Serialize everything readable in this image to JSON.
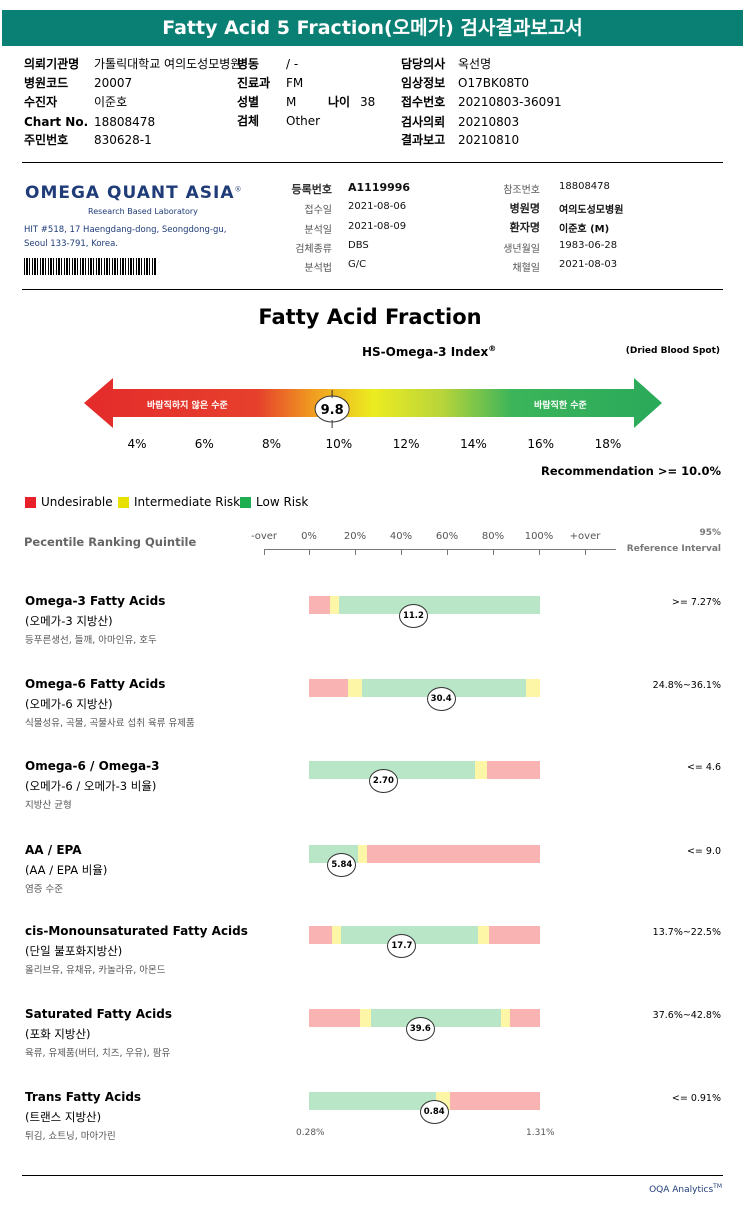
{
  "header": {
    "title": "Fatty Acid 5 Fraction(오메가) 검사결과보고서"
  },
  "patient": {
    "institution_label": "의뢰기관명",
    "institution_value": "가톨릭대학교 여의도성모병원",
    "ward_label": "병동",
    "ward_value": "/ -",
    "doctor_label": "담당의사",
    "doctor_value": "옥선명",
    "hospital_code_label": "병원코드",
    "hospital_code_value": "20007",
    "dept_label": "진료과",
    "dept_value": "FM",
    "clinical_label": "임상정보",
    "clinical_value": "O17BK08T0",
    "name_label": "수진자",
    "name_value": "이준호",
    "sex_label": "성별",
    "sex_value": "M",
    "age_label": "나이",
    "age_value": "38",
    "receipt_label": "접수번호",
    "receipt_value": "20210803-36091",
    "chart_label": "Chart No.",
    "chart_value": "18808478",
    "specimen_label": "검체",
    "specimen_value": "Other",
    "request_label": "검사의뢰",
    "request_value": "20210803",
    "rrn_label": "주민번호",
    "rrn_value": "830628-1",
    "report_label": "결과보고",
    "report_value": "20210810"
  },
  "lab": {
    "logo": "OMEGA QUANT ASIA",
    "logo_mark": "®",
    "tagline": "Research Based Laboratory",
    "address1": "HIT #518, 17 Haengdang-dong, Seongdong-gu,",
    "address2": "Seoul 133-791, Korea.",
    "reg_no_label": "등록번호",
    "reg_no_value": "A1119996",
    "received_label": "접수일",
    "received_value": "2021-08-06",
    "analyzed_label": "분석일",
    "analyzed_value": "2021-08-09",
    "sample_type_label": "검체종류",
    "sample_type_value": "DBS",
    "method_label": "분석법",
    "method_value": "G/C",
    "ref_no_label": "참조번호",
    "ref_no_value": "18808478",
    "hospital_label": "병원명",
    "hospital_value": "여의도성모병원",
    "patient_label": "환자명",
    "patient_value": "이준호 (M)",
    "dob_label": "생년월일",
    "dob_value": "1983-06-28",
    "collected_label": "채혈일",
    "collected_value": "2021-08-03"
  },
  "fraction": {
    "title": "Fatty Acid Fraction",
    "index_label": "HS-Omega-3 Index",
    "index_mark": "®",
    "dbs": "(Dried Blood Spot)",
    "left_text": "바람직하지 않은 수준",
    "right_text": "바람직한 수준",
    "value": 9.8,
    "value_text": "9.8",
    "ticks": [
      "4%",
      "6%",
      "8%",
      "10%",
      "12%",
      "14%",
      "16%",
      "18%"
    ],
    "tick_values": [
      4,
      6,
      8,
      10,
      12,
      14,
      16,
      18
    ],
    "recommendation": "Recommendation  >= 10.0%"
  },
  "legend": {
    "undesirable": "Undesirable",
    "intermediate": "Intermediate Risk",
    "low": "Low Risk",
    "colors": {
      "undesirable": "#e8202a",
      "intermediate": "#e8e000",
      "low": "#1fae4f"
    }
  },
  "percentile": {
    "label": "Pecentile Ranking Quintile",
    "scale": [
      "-over",
      "0%",
      "20%",
      "40%",
      "60%",
      "80%",
      "100%",
      "+over"
    ],
    "ref_header1": "95%",
    "ref_header2": "Reference Interval"
  },
  "rows": [
    {
      "title": "Omega-3 Fatty Acids",
      "kr": "(오메가-3 지방산)",
      "desc": "등푸른생선, 들깨, 아마인유, 호두",
      "ref": ">= 7.27%",
      "value": "11.2",
      "pos": 0.45,
      "segs": [
        [
          "red",
          0,
          0.09
        ],
        [
          "yel",
          0.09,
          0.13
        ],
        [
          "grn",
          0.13,
          1
        ]
      ]
    },
    {
      "title": "Omega-6 Fatty Acids",
      "kr": "(오메가-6 지방산)",
      "desc": "식물성유, 곡물, 곡물사료 섭취 육류 유제품",
      "ref": "24.8%~36.1%",
      "value": "30.4",
      "pos": 0.57,
      "segs": [
        [
          "red",
          0,
          0.17
        ],
        [
          "yel",
          0.17,
          0.23
        ],
        [
          "grn",
          0.23,
          0.94
        ],
        [
          "yel",
          0.94,
          1
        ]
      ]
    },
    {
      "title": "Omega-6 / Omega-3",
      "kr": "(오메가-6 / 오메가-3 비율)",
      "desc": "지방산 균형",
      "ref": "<= 4.6",
      "value": "2.70",
      "pos": 0.32,
      "segs": [
        [
          "grn",
          0,
          0.72
        ],
        [
          "yel",
          0.72,
          0.77
        ],
        [
          "red",
          0.77,
          1
        ]
      ]
    },
    {
      "title": "AA / EPA",
      "kr": "(AA / EPA 비율)",
      "desc": "염증 수준",
      "ref": "<= 9.0",
      "value": "5.84",
      "pos": 0.14,
      "segs": [
        [
          "grn",
          0,
          0.21
        ],
        [
          "yel",
          0.21,
          0.25
        ],
        [
          "red",
          0.25,
          1
        ]
      ]
    },
    {
      "title": "cis-Monounsaturated Fatty Acids",
      "kr": "(단일 불포화지방산)",
      "desc": "올리브유, 유채유, 카놀라유, 아몬드",
      "ref": "13.7%~22.5%",
      "value": "17.7",
      "pos": 0.4,
      "segs": [
        [
          "red",
          0,
          0.1
        ],
        [
          "yel",
          0.1,
          0.14
        ],
        [
          "grn",
          0.14,
          0.73
        ],
        [
          "yel",
          0.73,
          0.78
        ],
        [
          "red",
          0.78,
          1
        ]
      ]
    },
    {
      "title": "Saturated Fatty Acids",
      "kr": "(포화 지방산)",
      "desc": "육류, 유제품(버터, 치즈, 우유), 팜유",
      "ref": "37.6%~42.8%",
      "value": "39.6",
      "pos": 0.48,
      "segs": [
        [
          "red",
          0,
          0.22
        ],
        [
          "yel",
          0.22,
          0.27
        ],
        [
          "grn",
          0.27,
          0.83
        ],
        [
          "yel",
          0.83,
          0.87
        ],
        [
          "red",
          0.87,
          1
        ]
      ]
    },
    {
      "title": "Trans Fatty Acids",
      "kr": "(트랜스 지방산)",
      "desc": "튀김, 쇼트닝, 마아가린",
      "ref": "<= 0.91%",
      "value": "0.84",
      "pos": 0.54,
      "segs": [
        [
          "grn",
          0,
          0.55
        ],
        [
          "yel",
          0.55,
          0.61
        ],
        [
          "red",
          0.61,
          1
        ]
      ],
      "min_label": "0.28%",
      "max_label": "1.31%"
    }
  ],
  "footer": {
    "text": "OQA Analytics",
    "mark": "TM"
  }
}
